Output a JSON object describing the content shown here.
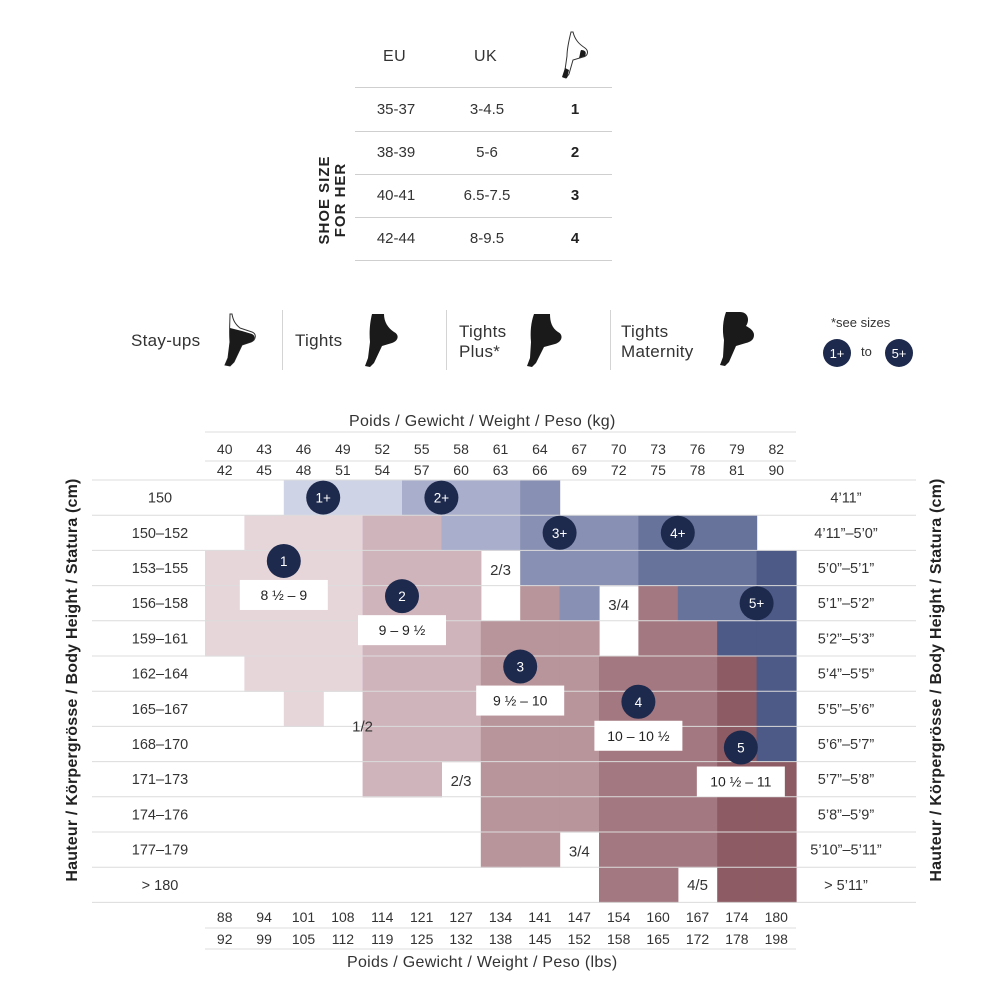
{
  "shoe_table": {
    "side_title_line1": "SHOE SIZE",
    "side_title_line2": "FOR HER",
    "headers": {
      "eu": "EU",
      "uk": "UK"
    },
    "rows": [
      {
        "eu": "35-37",
        "uk": "3-4.5",
        "size": "1"
      },
      {
        "eu": "38-39",
        "uk": "5-6",
        "size": "2"
      },
      {
        "eu": "40-41",
        "uk": "6.5-7.5",
        "size": "3"
      },
      {
        "eu": "42-44",
        "uk": "8-9.5",
        "size": "4"
      }
    ],
    "icon": "leg-icon"
  },
  "products": [
    {
      "label": "Stay-ups",
      "icon": "stay-ups-leg-icon"
    },
    {
      "label": "Tights",
      "icon": "tights-leg-icon"
    },
    {
      "label_line1": "Tights",
      "label_line2": "Plus*",
      "icon": "tights-plus-leg-icon"
    },
    {
      "label_line1": "Tights",
      "label_line2": "Maternity",
      "icon": "tights-maternity-leg-icon"
    }
  ],
  "plus_note": {
    "text": "*see sizes",
    "from": "1+",
    "connector": "to",
    "to": "5+"
  },
  "chart_data": {
    "type": "heatmap",
    "title_top": "Poids / Gewicht / Weight / Peso (kg)",
    "title_bottom": "Poids / Gewicht / Weight / Peso (lbs)",
    "ylabel": "Hauteur / Körpergrösse / Body Height / Statura (cm)",
    "weight_kg_low": [
      "40",
      "43",
      "46",
      "49",
      "52",
      "55",
      "58",
      "61",
      "64",
      "67",
      "70",
      "73",
      "76",
      "79",
      "82"
    ],
    "weight_kg_high": [
      "42",
      "45",
      "48",
      "51",
      "54",
      "57",
      "60",
      "63",
      "66",
      "69",
      "72",
      "75",
      "78",
      "81",
      "90"
    ],
    "weight_lbs_low": [
      "88",
      "94",
      "101",
      "108",
      "114",
      "121",
      "127",
      "134",
      "141",
      "147",
      "154",
      "160",
      "167",
      "174",
      "180"
    ],
    "weight_lbs_high": [
      "92",
      "99",
      "105",
      "112",
      "119",
      "125",
      "132",
      "138",
      "145",
      "152",
      "158",
      "165",
      "172",
      "178",
      "198"
    ],
    "heights_cm": [
      "150",
      "150–152",
      "153–155",
      "156–158",
      "159–161",
      "162–164",
      "165–167",
      "168–170",
      "171–173",
      "174–176",
      "177–179",
      "> 180"
    ],
    "heights_ft": [
      "4’11”",
      "4’11”–5’0”",
      "5’0”–5’1”",
      "5’1”–5’2”",
      "5’2”–5’3”",
      "5’4”–5’5”",
      "5’5”–5’6”",
      "5’6”–5’7”",
      "5’7”–5’8”",
      "5’8”–5’9”",
      "5’10”–5’11”",
      "> 5’11”"
    ],
    "size_grid": [
      [
        "0",
        "0",
        "P1",
        "P1",
        "P1",
        "P2",
        "P2",
        "P2",
        "P3",
        "0",
        "0",
        "0",
        "0",
        "0",
        "0"
      ],
      [
        "0",
        "1",
        "1",
        "1",
        "2",
        "2",
        "P2",
        "P2",
        "P3",
        "P3",
        "P3",
        "P4",
        "P4",
        "P4",
        "0"
      ],
      [
        "1",
        "1",
        "1",
        "1",
        "2",
        "2",
        "2",
        "0",
        "P3",
        "P3",
        "P3",
        "P4",
        "P4",
        "P4",
        "P5"
      ],
      [
        "1",
        "1",
        "1",
        "1",
        "2",
        "2",
        "2",
        "0",
        "3",
        "P3",
        "0",
        "4",
        "P4",
        "P4",
        "P5"
      ],
      [
        "1",
        "1",
        "1",
        "1",
        "2",
        "2",
        "2",
        "3",
        "3",
        "3",
        "0",
        "4",
        "4",
        "P5",
        "P5"
      ],
      [
        "0",
        "1",
        "1",
        "1",
        "2",
        "2",
        "2",
        "3",
        "3",
        "3",
        "4",
        "4",
        "4",
        "5",
        "P5"
      ],
      [
        "0",
        "0",
        "1",
        "0",
        "2",
        "2",
        "2",
        "3",
        "3",
        "3",
        "4",
        "4",
        "4",
        "5",
        "P5"
      ],
      [
        "0",
        "0",
        "0",
        "0",
        "2",
        "2",
        "2",
        "3",
        "3",
        "3",
        "4",
        "4",
        "4",
        "5",
        "P5"
      ],
      [
        "0",
        "0",
        "0",
        "0",
        "2",
        "2",
        "0",
        "3",
        "3",
        "3",
        "4",
        "4",
        "4",
        "5",
        "5"
      ],
      [
        "0",
        "0",
        "0",
        "0",
        "0",
        "0",
        "0",
        "3",
        "3",
        "3",
        "4",
        "4",
        "4",
        "5",
        "5"
      ],
      [
        "0",
        "0",
        "0",
        "0",
        "0",
        "0",
        "0",
        "3",
        "3",
        "0",
        "4",
        "4",
        "4",
        "5",
        "5"
      ],
      [
        "0",
        "0",
        "0",
        "0",
        "0",
        "0",
        "0",
        "0",
        "0",
        "0",
        "4",
        "4",
        "0",
        "5",
        "5"
      ]
    ],
    "size_colors": {
      "1": "#e6d6da",
      "2": "#cfb4bb",
      "3": "#b8959b",
      "4": "#a37880",
      "5": "#8d5b63",
      "P1": "#cfd3e6",
      "P2": "#a8aecb",
      "P3": "#8890b3",
      "P4": "#68739b",
      "P5": "#4d5986"
    },
    "size_markers": [
      {
        "label": "1",
        "col": 2,
        "row": 2.3,
        "shoe": "8 ½ – 9"
      },
      {
        "label": "2",
        "col": 5,
        "row": 3.3,
        "shoe": "9 – 9 ½"
      },
      {
        "label": "3",
        "col": 8,
        "row": 5.3,
        "shoe": "9 ½ – 10"
      },
      {
        "label": "4",
        "col": 11,
        "row": 6.3,
        "shoe": "10 – 10 ½"
      },
      {
        "label": "5",
        "col": 13.6,
        "row": 7.6,
        "shoe": "10 ½ – 11"
      }
    ],
    "plus_markers": [
      {
        "label": "1+",
        "col": 3,
        "row": 0.5
      },
      {
        "label": "2+",
        "col": 6,
        "row": 0.5
      },
      {
        "label": "3+",
        "col": 9,
        "row": 1.5
      },
      {
        "label": "4+",
        "col": 12,
        "row": 1.5
      },
      {
        "label": "5+",
        "col": 14,
        "row": 3.5
      }
    ],
    "between_labels": [
      {
        "text": "2/3",
        "col": 7,
        "row": 2.55
      },
      {
        "text": "3/4",
        "col": 10,
        "row": 3.55
      },
      {
        "text": "1/2",
        "col": 3.5,
        "row": 7
      },
      {
        "text": "2/3",
        "col": 6,
        "row": 8.55
      },
      {
        "text": "3/4",
        "col": 9,
        "row": 10.55
      },
      {
        "text": "4/5",
        "col": 12,
        "row": 11.5
      }
    ]
  }
}
